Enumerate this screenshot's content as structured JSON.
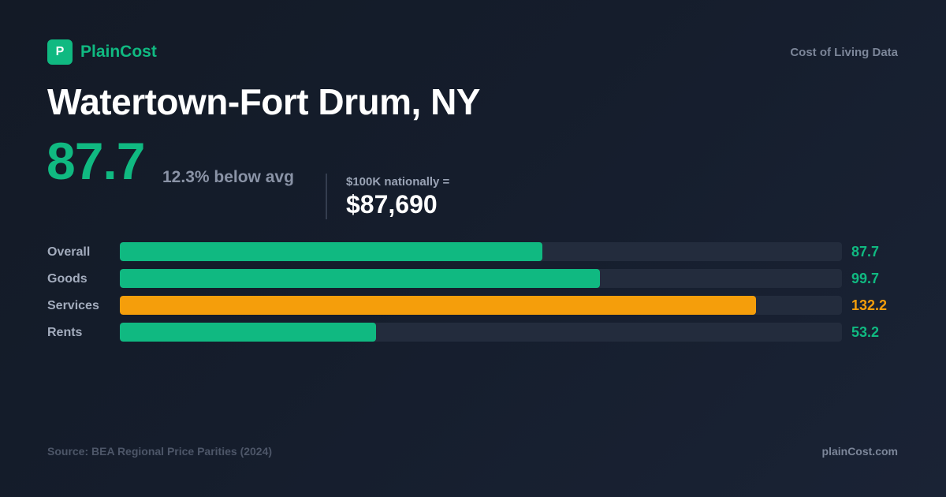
{
  "brand": {
    "logo_letter": "P",
    "name": "PlainCost"
  },
  "tagline": "Cost of Living Data",
  "city": "Watertown-Fort Drum, NY",
  "summary": {
    "index": "87.7",
    "comparison": "12.3% below avg",
    "equivalent_label": "$100K nationally =",
    "equivalent_value": "$87,690"
  },
  "colors": {
    "accent": "#10b981",
    "above": "#f59e0b",
    "track": "#232c3d"
  },
  "chart_data": {
    "type": "bar",
    "orientation": "horizontal",
    "categories": [
      "Overall",
      "Goods",
      "Services",
      "Rents"
    ],
    "values": [
      87.7,
      99.7,
      132.2,
      53.2
    ],
    "value_labels": [
      "87.7",
      "99.7",
      "132.2",
      "53.2"
    ],
    "bar_colors": [
      "#10b981",
      "#10b981",
      "#f59e0b",
      "#10b981"
    ],
    "xlim": [
      0,
      150
    ],
    "grid": false,
    "legend": "none"
  },
  "footer": {
    "source": "Source: BEA Regional Price Parities (2024)",
    "site": "plainCost.com"
  }
}
